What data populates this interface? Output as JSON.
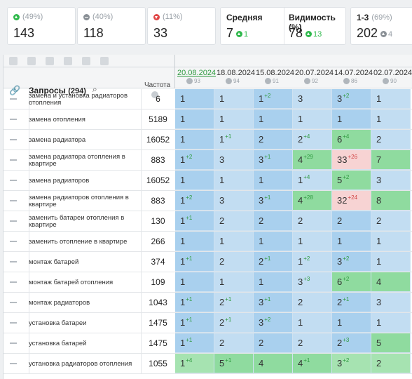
{
  "summary": {
    "up": {
      "pct": "(49%)",
      "value": "143"
    },
    "same": {
      "pct": "(40%)",
      "value": "118"
    },
    "down": {
      "pct": "(11%)",
      "value": "33"
    },
    "avg": {
      "title": "Средняя",
      "value": "7",
      "delta": "1"
    },
    "vis": {
      "title": "Видимость (%)",
      "value": "78",
      "delta": "13"
    },
    "top": {
      "title": "1-3",
      "pct": "(69%)",
      "value": "202",
      "delta": "4"
    }
  },
  "table": {
    "queries_label": "Запросы",
    "queries_count": "(294)",
    "freq_label": "Частота",
    "dates": [
      {
        "date": "20.08.2024",
        "sub": "93",
        "active": true
      },
      {
        "date": "18.08.2024",
        "sub": "94"
      },
      {
        "date": "15.08.2024",
        "sub": "91"
      },
      {
        "date": "20.07.2024",
        "sub": "92"
      },
      {
        "date": "14.07.2024",
        "sub": "86"
      },
      {
        "date": "02.07.2024",
        "sub": "90"
      }
    ],
    "rows": [
      {
        "q": "замена и установка радиаторов отопления",
        "f": "6",
        "cells": [
          [
            "1",
            "",
            ""
          ],
          [
            "1",
            "",
            ""
          ],
          [
            "1",
            "+2",
            ""
          ],
          [
            "3",
            "",
            ""
          ],
          [
            "3",
            "+2",
            ""
          ],
          [
            "1",
            "",
            ""
          ]
        ]
      },
      {
        "q": "замена отопления",
        "f": "5189",
        "cells": [
          [
            "1",
            "",
            ""
          ],
          [
            "1",
            "",
            ""
          ],
          [
            "1",
            "",
            ""
          ],
          [
            "1",
            "",
            ""
          ],
          [
            "1",
            "",
            ""
          ],
          [
            "1",
            "",
            ""
          ]
        ]
      },
      {
        "q": "замена радиатора",
        "f": "16052",
        "cells": [
          [
            "1",
            "",
            ""
          ],
          [
            "1",
            "+1",
            ""
          ],
          [
            "2",
            "",
            ""
          ],
          [
            "2",
            "+4",
            ""
          ],
          [
            "6",
            "+4",
            "green"
          ],
          [
            "2",
            "",
            ""
          ]
        ]
      },
      {
        "q": "замена радиатора отопления в квартире",
        "f": "883",
        "cells": [
          [
            "1",
            "+2",
            ""
          ],
          [
            "3",
            "",
            ""
          ],
          [
            "3",
            "+1",
            ""
          ],
          [
            "4",
            "+29",
            "green"
          ],
          [
            "33",
            "+26",
            "pink"
          ],
          [
            "7",
            "",
            "green"
          ]
        ]
      },
      {
        "q": "замена радиаторов",
        "f": "16052",
        "cells": [
          [
            "1",
            "",
            ""
          ],
          [
            "1",
            "",
            ""
          ],
          [
            "1",
            "",
            ""
          ],
          [
            "1",
            "+4",
            ""
          ],
          [
            "5",
            "+2",
            "green"
          ],
          [
            "3",
            "",
            ""
          ]
        ]
      },
      {
        "q": "замена радиаторов отопления в квартире",
        "f": "883",
        "cells": [
          [
            "1",
            "+2",
            ""
          ],
          [
            "3",
            "",
            ""
          ],
          [
            "3",
            "+1",
            ""
          ],
          [
            "4",
            "+28",
            "green"
          ],
          [
            "32",
            "+24",
            "pink"
          ],
          [
            "8",
            "",
            "green"
          ]
        ]
      },
      {
        "q": "заменить батареи отопления в квартире",
        "f": "130",
        "cells": [
          [
            "1",
            "+1",
            ""
          ],
          [
            "2",
            "",
            ""
          ],
          [
            "2",
            "",
            ""
          ],
          [
            "2",
            "",
            ""
          ],
          [
            "2",
            "",
            ""
          ],
          [
            "2",
            "",
            ""
          ]
        ]
      },
      {
        "q": "заменить отопление в квартире",
        "f": "266",
        "cells": [
          [
            "1",
            "",
            ""
          ],
          [
            "1",
            "",
            ""
          ],
          [
            "1",
            "",
            ""
          ],
          [
            "1",
            "",
            ""
          ],
          [
            "1",
            "",
            ""
          ],
          [
            "1",
            "",
            ""
          ]
        ]
      },
      {
        "q": "монтаж батарей",
        "f": "374",
        "cells": [
          [
            "1",
            "+1",
            ""
          ],
          [
            "2",
            "",
            ""
          ],
          [
            "2",
            "+1",
            ""
          ],
          [
            "1",
            "+2",
            ""
          ],
          [
            "3",
            "+2",
            ""
          ],
          [
            "1",
            "",
            ""
          ]
        ]
      },
      {
        "q": "монтаж батарей отопления",
        "f": "109",
        "cells": [
          [
            "1",
            "",
            ""
          ],
          [
            "1",
            "",
            ""
          ],
          [
            "1",
            "",
            ""
          ],
          [
            "3",
            "+3",
            ""
          ],
          [
            "6",
            "+2",
            "green"
          ],
          [
            "4",
            "",
            "green"
          ]
        ]
      },
      {
        "q": "монтаж радиаторов",
        "f": "1043",
        "cells": [
          [
            "1",
            "+1",
            ""
          ],
          [
            "2",
            "+1",
            ""
          ],
          [
            "3",
            "+1",
            ""
          ],
          [
            "2",
            "",
            ""
          ],
          [
            "2",
            "+1",
            ""
          ],
          [
            "3",
            "",
            ""
          ]
        ]
      },
      {
        "q": "установка батареи",
        "f": "1475",
        "cells": [
          [
            "1",
            "+1",
            ""
          ],
          [
            "2",
            "+1",
            ""
          ],
          [
            "3",
            "+2",
            ""
          ],
          [
            "1",
            "",
            ""
          ],
          [
            "1",
            "",
            ""
          ],
          [
            "1",
            "",
            ""
          ]
        ]
      },
      {
        "q": "установка батарей",
        "f": "1475",
        "cells": [
          [
            "1",
            "+1",
            ""
          ],
          [
            "2",
            "",
            ""
          ],
          [
            "2",
            "",
            ""
          ],
          [
            "2",
            "",
            ""
          ],
          [
            "2",
            "+3",
            ""
          ],
          [
            "5",
            "",
            "green"
          ]
        ]
      },
      {
        "q": "установка радиаторов отопления",
        "f": "1055",
        "cells": [
          [
            "1",
            "+4",
            "lgreen"
          ],
          [
            "5",
            "+1",
            "green"
          ],
          [
            "4",
            "",
            "green"
          ],
          [
            "4",
            "+1",
            "green"
          ],
          [
            "3",
            "+2",
            "lgreen"
          ],
          [
            "2",
            "",
            "lgreen"
          ]
        ]
      }
    ]
  }
}
